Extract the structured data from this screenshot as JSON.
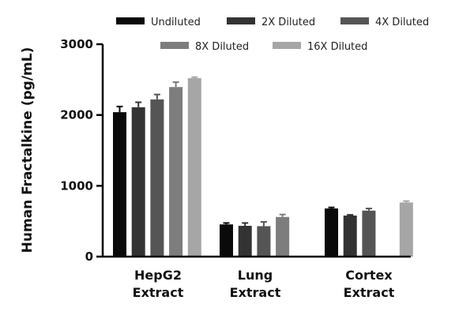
{
  "chart_data": {
    "type": "bar",
    "ylabel": "Human Fractalkine (pg/mL)",
    "xlabel": "",
    "ylim": [
      0,
      3000
    ],
    "yticks": [
      "0",
      "1000",
      "2000",
      "3000"
    ],
    "categories": [
      [
        "HepG2",
        "Extract"
      ],
      [
        "Lung",
        "Extract"
      ],
      [
        "Cortex",
        "Extract"
      ]
    ],
    "legend_position": "top",
    "series": [
      {
        "name": "Undiluted",
        "color": "#0a0a0a",
        "values": [
          2040,
          455,
          680
        ],
        "errors": [
          80,
          20,
          15
        ]
      },
      {
        "name": "2X Diluted",
        "color": "#333333",
        "values": [
          2110,
          435,
          580
        ],
        "errors": [
          70,
          40,
          10
        ]
      },
      {
        "name": "4X Diluted",
        "color": "#555555",
        "values": [
          2220,
          430,
          650
        ],
        "errors": [
          70,
          60,
          30
        ]
      },
      {
        "name": "8X Diluted",
        "color": "#7d7d7d",
        "values": [
          2395,
          560,
          0
        ],
        "errors": [
          70,
          35,
          0
        ]
      },
      {
        "name": "16X Diluted",
        "color": "#a6a6a6",
        "values": [
          2520,
          0,
          765
        ],
        "errors": [
          15,
          0,
          20
        ]
      }
    ]
  }
}
